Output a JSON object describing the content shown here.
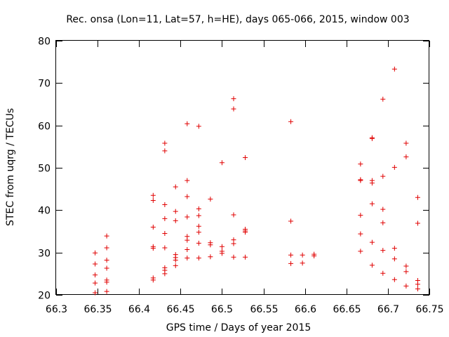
{
  "chart_data": {
    "type": "scatter",
    "title": "Rec. onsa (Lon=11, Lat=57, h=HE), days 065-066, 2015, window 003",
    "xlabel": "GPS time / Days of year 2015",
    "ylabel": "STEC from uqrg / TECUs",
    "xlim": [
      66.3,
      66.75
    ],
    "ylim": [
      20,
      80
    ],
    "xticks": [
      "66.3",
      "66.35",
      "66.4",
      "66.45",
      "66.5",
      "66.55",
      "66.6",
      "66.65",
      "66.7",
      "66.75"
    ],
    "yticks": [
      "20",
      "30",
      "40",
      "50",
      "60",
      "70",
      "80"
    ],
    "grid": false,
    "legend": "none",
    "marker": "plus",
    "color": "#e00000",
    "series": [
      {
        "points": [
          [
            66.347,
            29.9
          ],
          [
            66.347,
            27.3
          ],
          [
            66.347,
            24.7
          ],
          [
            66.347,
            22.8
          ],
          [
            66.347,
            20.5
          ],
          [
            66.361,
            33.9
          ],
          [
            66.361,
            31.1
          ],
          [
            66.361,
            28.2
          ],
          [
            66.361,
            26.3
          ],
          [
            66.361,
            23.5
          ],
          [
            66.361,
            23.0
          ],
          [
            66.361,
            20.8
          ],
          [
            66.417,
            43.5
          ],
          [
            66.417,
            42.3
          ],
          [
            66.417,
            36.0
          ],
          [
            66.417,
            31.4
          ],
          [
            66.417,
            31.0
          ],
          [
            66.417,
            24.0
          ],
          [
            66.417,
            23.5
          ],
          [
            66.431,
            55.8
          ],
          [
            66.431,
            54.0
          ],
          [
            66.431,
            41.3
          ],
          [
            66.431,
            38.0
          ],
          [
            66.431,
            34.5
          ],
          [
            66.431,
            31.1
          ],
          [
            66.431,
            26.4
          ],
          [
            66.431,
            25.8
          ],
          [
            66.431,
            25.0
          ],
          [
            66.444,
            45.5
          ],
          [
            66.444,
            39.7
          ],
          [
            66.444,
            37.5
          ],
          [
            66.444,
            29.5
          ],
          [
            66.444,
            28.8
          ],
          [
            66.444,
            28.2
          ],
          [
            66.444,
            26.9
          ],
          [
            66.458,
            60.4
          ],
          [
            66.458,
            47.0
          ],
          [
            66.458,
            43.2
          ],
          [
            66.458,
            38.4
          ],
          [
            66.458,
            33.8
          ],
          [
            66.458,
            32.9
          ],
          [
            66.458,
            30.7
          ],
          [
            66.458,
            28.7
          ],
          [
            66.472,
            59.8
          ],
          [
            66.472,
            40.3
          ],
          [
            66.472,
            38.7
          ],
          [
            66.472,
            36.2
          ],
          [
            66.472,
            34.8
          ],
          [
            66.472,
            32.2
          ],
          [
            66.472,
            28.7
          ],
          [
            66.486,
            42.6
          ],
          [
            66.486,
            32.3
          ],
          [
            66.486,
            31.8
          ],
          [
            66.486,
            29.0
          ],
          [
            66.5,
            51.2
          ],
          [
            66.5,
            31.4
          ],
          [
            66.5,
            30.3
          ],
          [
            66.5,
            29.8
          ],
          [
            66.514,
            66.3
          ],
          [
            66.514,
            63.9
          ],
          [
            66.514,
            38.9
          ],
          [
            66.514,
            33.0
          ],
          [
            66.514,
            32.1
          ],
          [
            66.514,
            28.9
          ],
          [
            66.528,
            52.4
          ],
          [
            66.528,
            35.5
          ],
          [
            66.528,
            35.1
          ],
          [
            66.528,
            34.8
          ],
          [
            66.528,
            28.9
          ],
          [
            66.583,
            60.9
          ],
          [
            66.583,
            37.4
          ],
          [
            66.583,
            29.4
          ],
          [
            66.583,
            27.4
          ],
          [
            66.597,
            29.4
          ],
          [
            66.597,
            27.5
          ],
          [
            66.611,
            29.6
          ],
          [
            66.611,
            29.2
          ],
          [
            66.667,
            50.9
          ],
          [
            66.667,
            47.2
          ],
          [
            66.667,
            47.0
          ],
          [
            66.667,
            38.8
          ],
          [
            66.667,
            34.4
          ],
          [
            66.667,
            30.3
          ],
          [
            66.681,
            57.1
          ],
          [
            66.681,
            56.9
          ],
          [
            66.681,
            47.0
          ],
          [
            66.681,
            46.4
          ],
          [
            66.681,
            41.5
          ],
          [
            66.681,
            32.4
          ],
          [
            66.681,
            27.0
          ],
          [
            66.694,
            66.2
          ],
          [
            66.694,
            48.0
          ],
          [
            66.694,
            40.2
          ],
          [
            66.694,
            37.0
          ],
          [
            66.694,
            30.5
          ],
          [
            66.694,
            25.1
          ],
          [
            66.708,
            73.3
          ],
          [
            66.708,
            50.1
          ],
          [
            66.708,
            31.0
          ],
          [
            66.708,
            28.5
          ],
          [
            66.708,
            23.6
          ],
          [
            66.722,
            55.8
          ],
          [
            66.722,
            52.6
          ],
          [
            66.722,
            26.8
          ],
          [
            66.722,
            25.5
          ],
          [
            66.722,
            22.1
          ],
          [
            66.736,
            43.0
          ],
          [
            66.736,
            36.9
          ],
          [
            66.736,
            23.4
          ],
          [
            66.736,
            22.5
          ],
          [
            66.736,
            21.4
          ]
        ]
      }
    ]
  }
}
